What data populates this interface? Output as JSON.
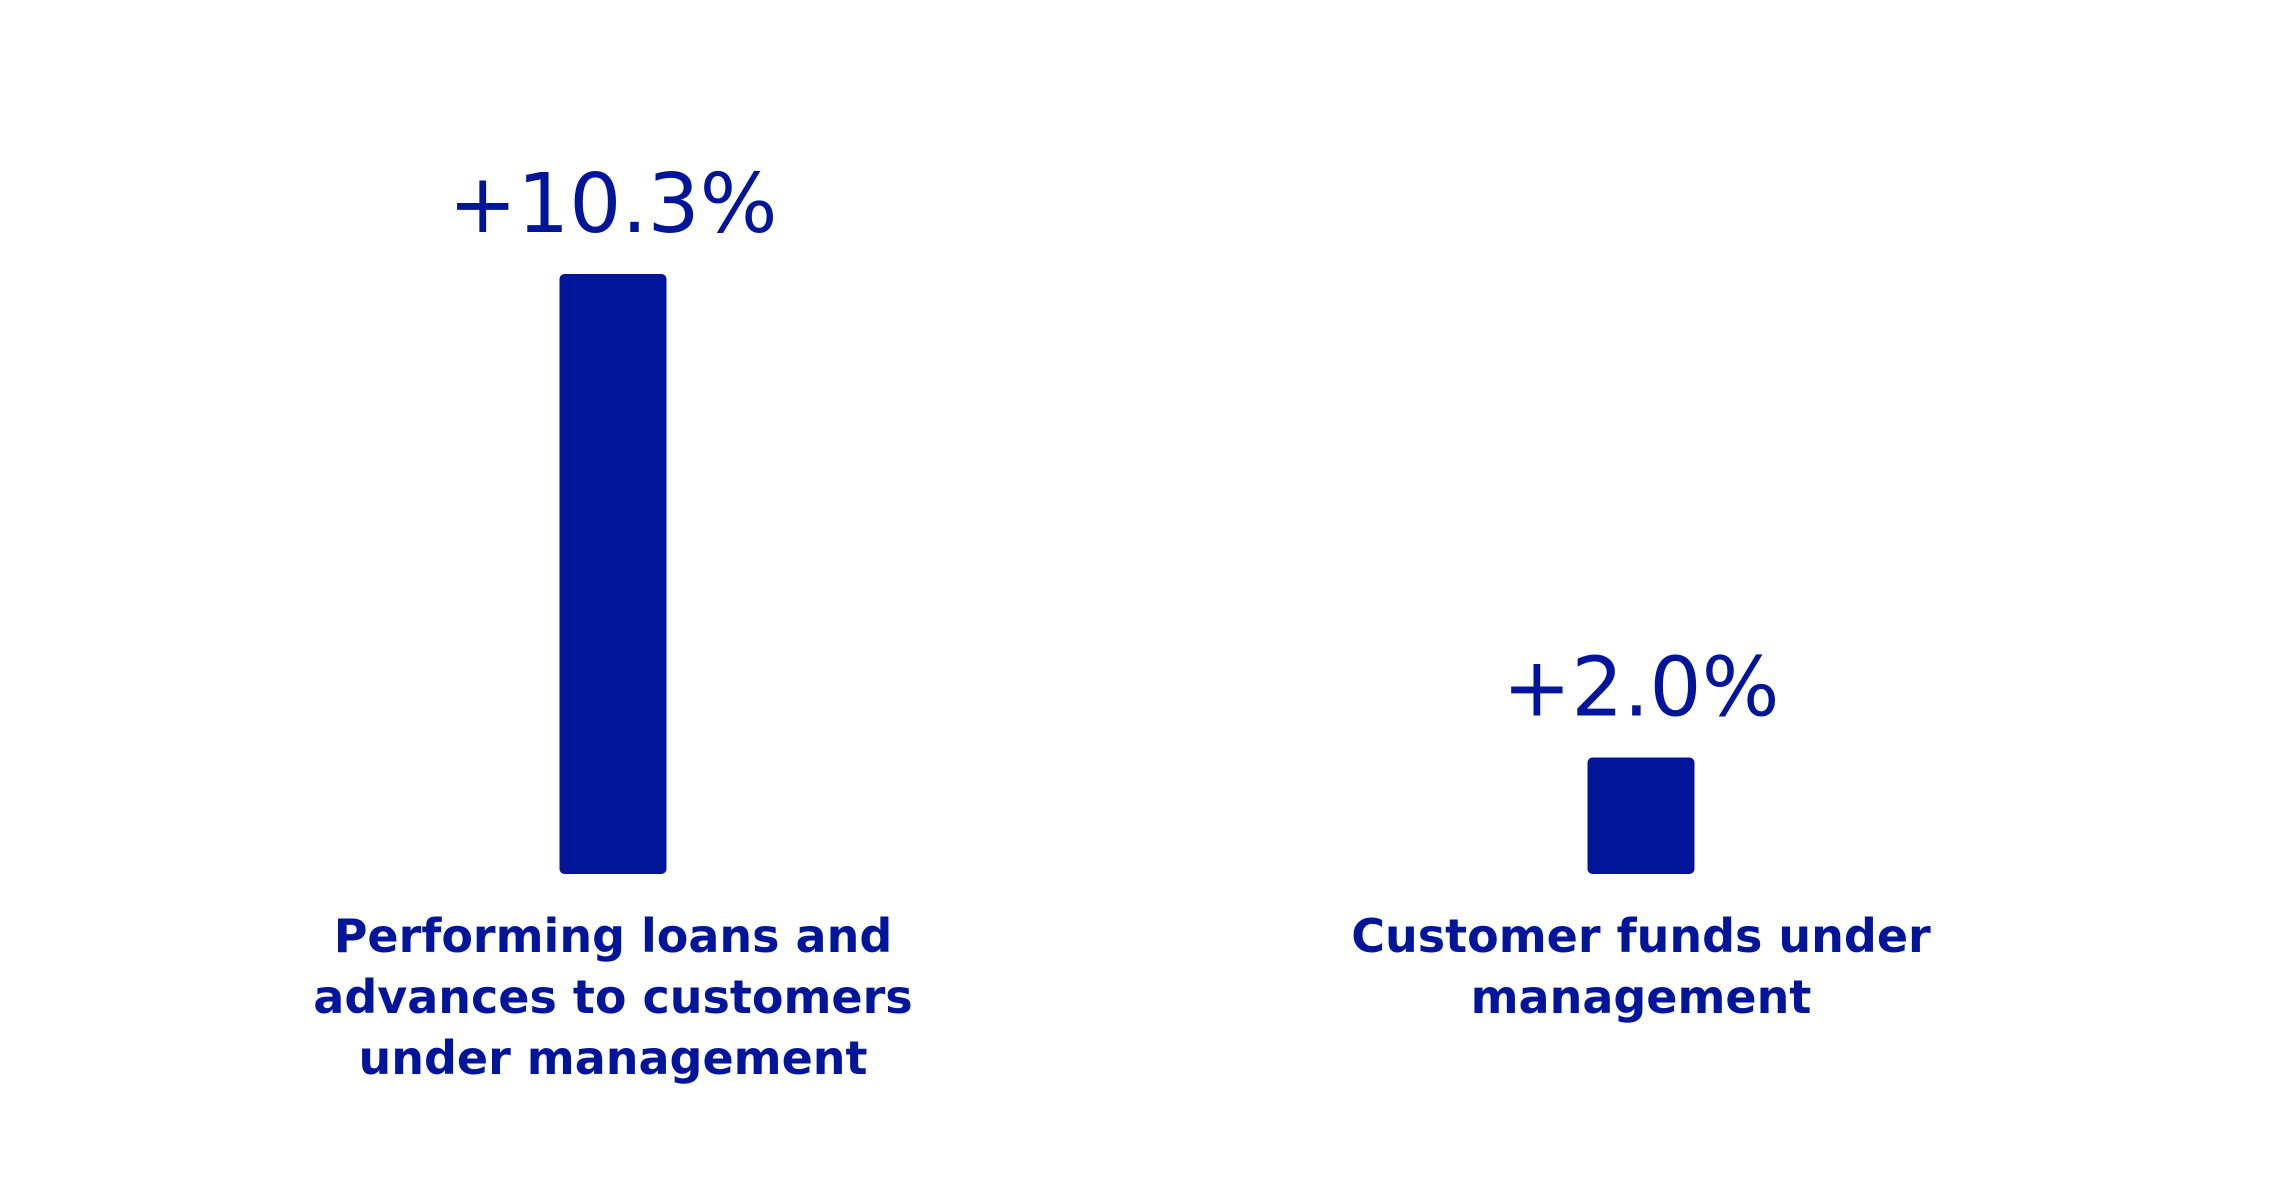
{
  "chart_data": {
    "type": "bar",
    "categories": [
      "Performing loans and advances to customers under management",
      "Customer funds under management"
    ],
    "values": [
      10.3,
      2.0
    ],
    "value_labels": [
      "+10.3%",
      "+2.0%"
    ],
    "color": "#00159a"
  }
}
